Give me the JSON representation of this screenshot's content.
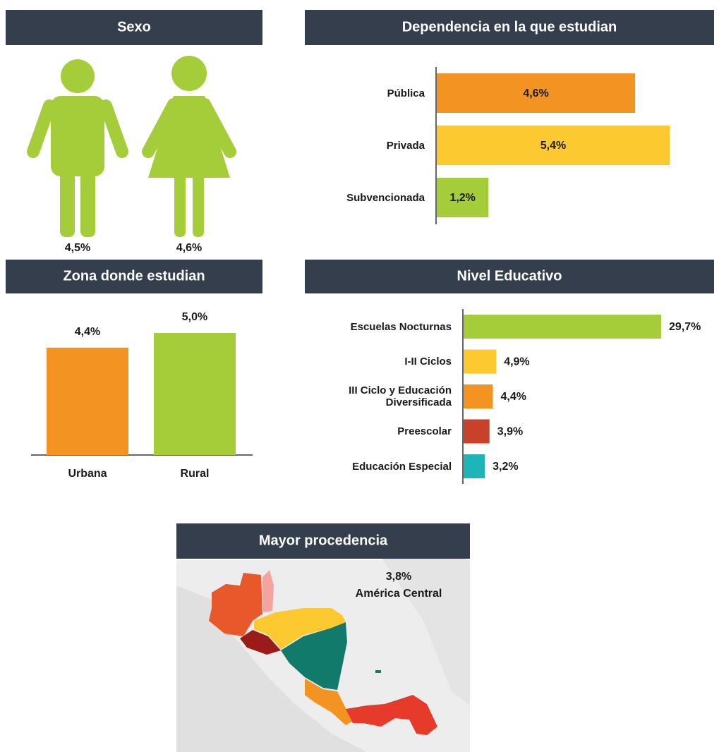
{
  "chart_data": [
    {
      "type": "pictogram",
      "title": "Sexo",
      "categories": [
        null,
        null
      ],
      "values": [
        4.5,
        4.6
      ],
      "value_labels": [
        "4,5%",
        "4,6%"
      ],
      "color": "#a5cd39"
    },
    {
      "type": "hbar",
      "title": "Dependencia en la que estudian",
      "categories": [
        "Pública",
        "Privada",
        "Subvencionada"
      ],
      "values": [
        4.6,
        5.4,
        1.2
      ],
      "value_labels": [
        "4,6%",
        "5,4%",
        "1,2%"
      ],
      "colors": [
        "#f39322",
        "#fdc930",
        "#a5cd39"
      ]
    },
    {
      "type": "bar",
      "title": "Zona donde estudian",
      "categories": [
        "Urbana",
        "Rural"
      ],
      "values": [
        4.4,
        5.0
      ],
      "value_labels": [
        "4,4%",
        "5,0%"
      ],
      "colors": [
        "#f39322",
        "#a5cd39"
      ]
    },
    {
      "type": "hbar",
      "title": "Nivel Educativo",
      "categories": [
        "Escuelas Nocturnas",
        "I-II Ciclos",
        "III Ciclo y Educación Diversificada",
        "Preescolar",
        "Educación Especial"
      ],
      "values": [
        29.7,
        4.9,
        4.4,
        3.9,
        3.2
      ],
      "value_labels": [
        "29,7%",
        "4,9%",
        "4,4%",
        "3,9%",
        "3,2%"
      ],
      "colors": [
        "#a5cd39",
        "#fdc930",
        "#f39322",
        "#c9402b",
        "#1fb5b8"
      ]
    },
    {
      "type": "map",
      "title": "Mayor procedencia",
      "categories": [
        "América Central"
      ],
      "values": [
        3.8
      ],
      "value_labels": [
        "3,8%"
      ]
    }
  ]
}
